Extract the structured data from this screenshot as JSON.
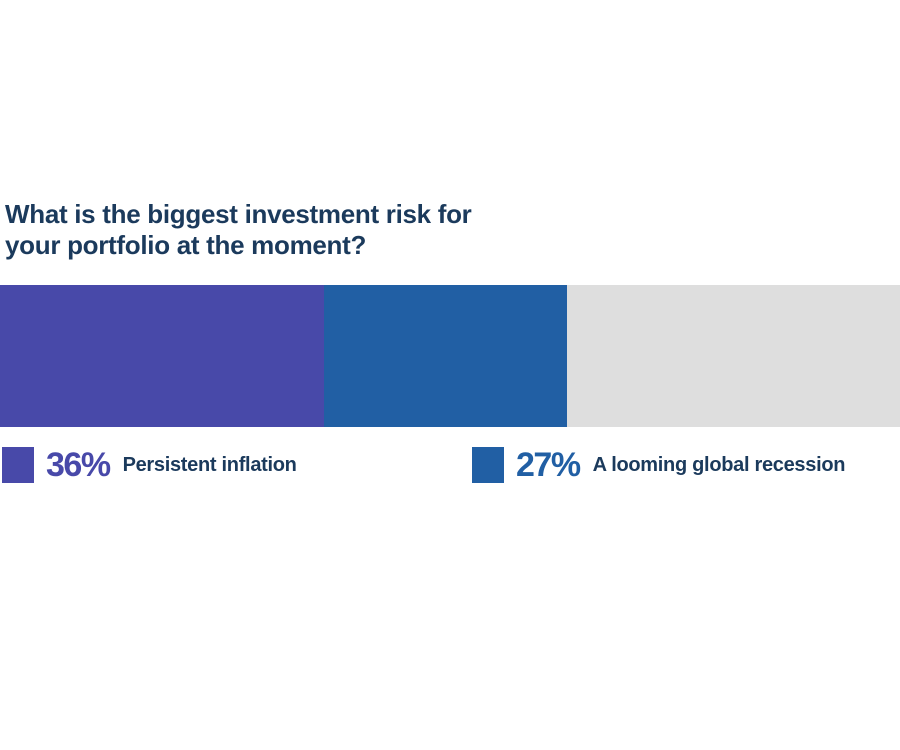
{
  "page": {
    "background": "#FFFFFF",
    "title_color": "#1B3A5C"
  },
  "title": "What is the biggest investment risk for\nyour portfolio at the moment?",
  "chart_data": {
    "type": "bar",
    "subtype": "horizontal-stacked-single-bar",
    "title": "What is the biggest investment risk for your portfolio at the moment?",
    "unit": "percent",
    "xlim": [
      0,
      100
    ],
    "grid": false,
    "legend_position": "below-bar",
    "segments": [
      {
        "label": "Persistent inflation",
        "value": 36,
        "color": "#4849A9"
      },
      {
        "label": "A looming global recession",
        "value": 27,
        "color": "#215FA4"
      },
      {
        "label": "",
        "value": 37,
        "color": "#DEDEDE"
      }
    ]
  },
  "legend": {
    "text_color": "#1B3A5C",
    "items": [
      {
        "pct": "36%",
        "label": "Persistent inflation",
        "color": "#4849A9"
      },
      {
        "pct": "27%",
        "label": "A looming global recession",
        "color": "#215FA4"
      }
    ]
  }
}
